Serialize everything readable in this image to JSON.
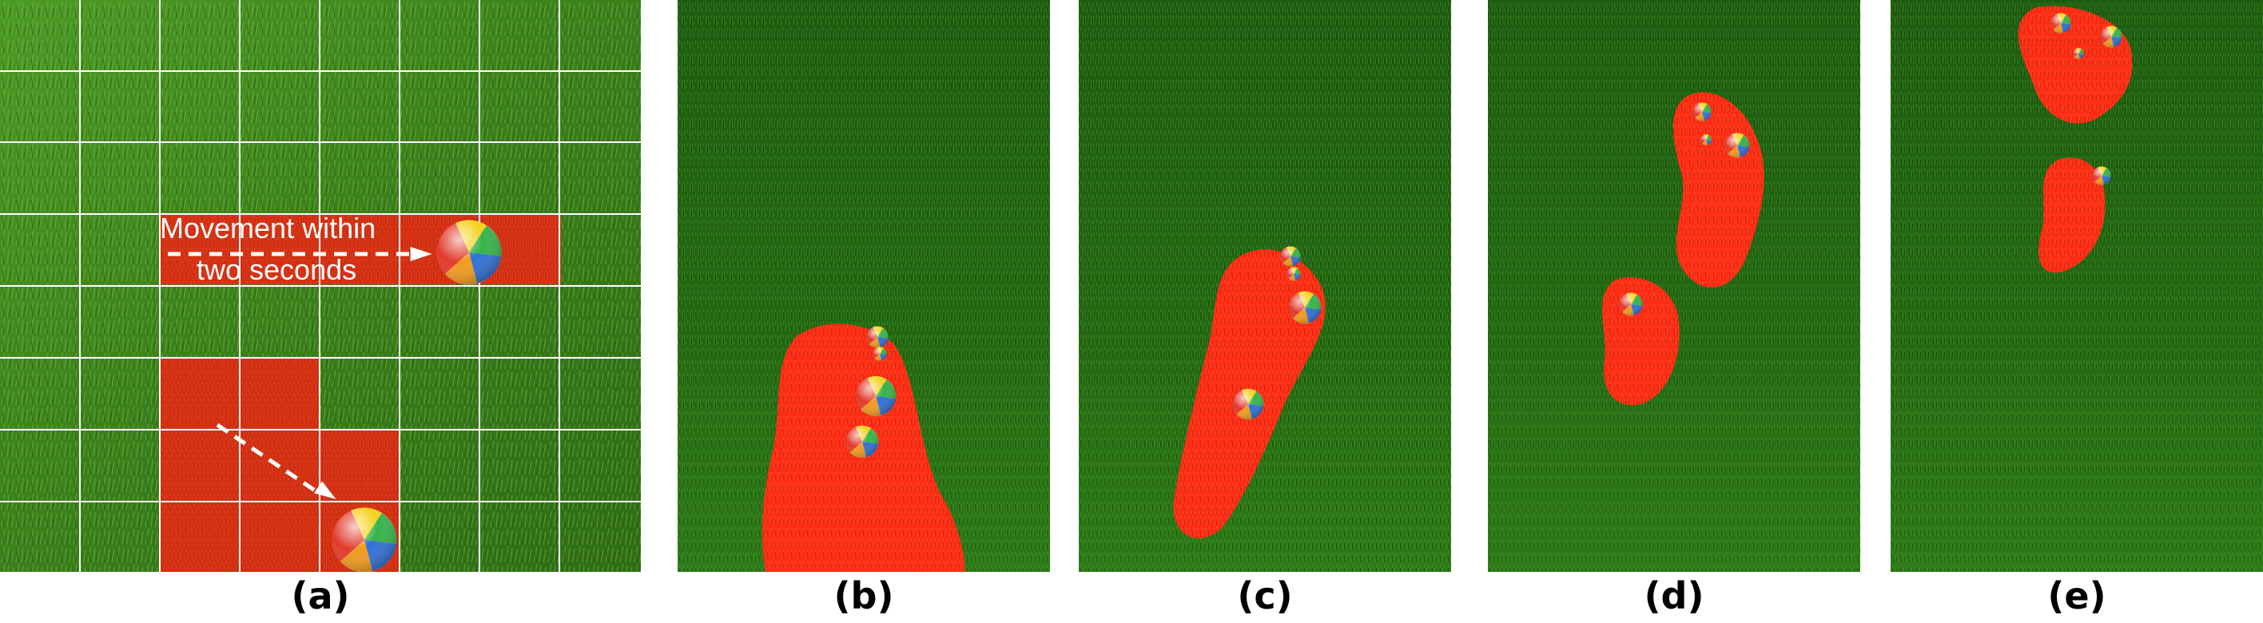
{
  "panels": [
    {
      "label": "(a)",
      "annotation_line1": "Movement within",
      "annotation_line2": "two seconds"
    },
    {
      "label": "(b)"
    },
    {
      "label": "(c)"
    },
    {
      "label": "(d)"
    },
    {
      "label": "(e)"
    }
  ],
  "colors": {
    "grass_light": "#3f8a1e",
    "grass_dark": "#174d0c",
    "grid_line": "#ffffff",
    "highlight": "#e0260f",
    "trail": "#ff2a10",
    "caption_text": "#000000"
  },
  "icons": [
    "beach-ball-icon",
    "dashed-arrow-icon"
  ]
}
